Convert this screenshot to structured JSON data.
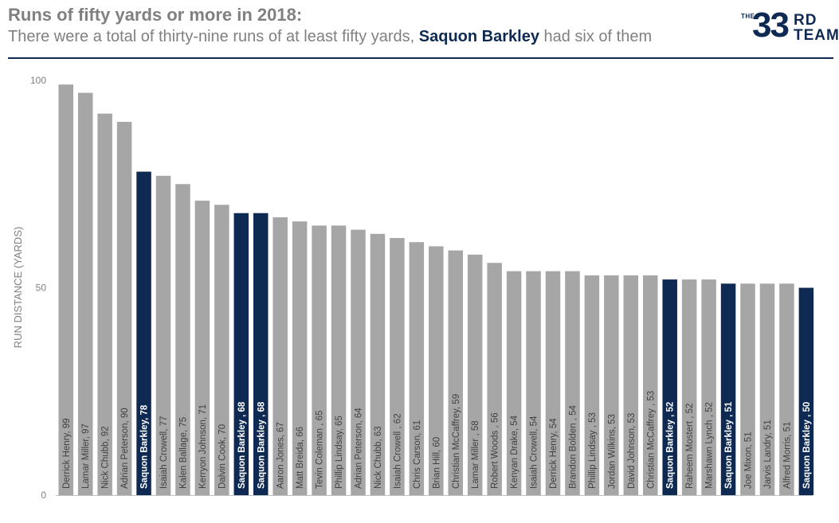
{
  "header": {
    "title": "Runs of fifty yards or more in 2018:",
    "subtitle_pre": "There were a total of thirty-nine runs of at least fifty yards, ",
    "subtitle_highlight": "Saquon Barkley",
    "subtitle_post": " had six of them"
  },
  "logo": {
    "the": "THE",
    "num": "33",
    "rd": "RD",
    "team": "TEAM"
  },
  "colors": {
    "bar": "#a6a6a6",
    "highlight": "#0f2a52",
    "accent": "#0f2a52",
    "text": "#808080"
  },
  "chart_data": {
    "type": "bar",
    "ylabel": "RUN DISTANCE (YARDS)",
    "ylim": [
      0,
      100
    ],
    "yticks": [
      0,
      50,
      100
    ],
    "categories": [
      "Derrick Henry, 99",
      "Lamar Miller, 97",
      "Nick Chubb, 92",
      "Adrian Peterson, 90",
      "Saquon Barkley, 78",
      "Isaiah Crowell, 77",
      "Kalen Ballage, 75",
      "Kerryon Johnson, 71",
      "Dalvin Cook, 70",
      "Saquon Barkley , 68",
      "Saquon Barkley , 68",
      "Aaron Jones, 67",
      "Matt Breida, 66",
      "Tevin Coleman , 65",
      "Phillip Lindsay, 65",
      "Adrian Peterson, 64",
      "Nick Chubb, 63",
      "Isaiah Crowell , 62",
      "Chris Carson, 61",
      "Brian Hill, 60",
      "Christian McCaffrey, 59",
      "Lamar Miller , 58",
      "Robert Woods , 56",
      "Kenyan Drake, 54",
      "Isaiah Crowell, 54",
      "Derrick Henry, 54",
      "Brandon Bolden , 54",
      "Phillip Lindsay , 53",
      "Jordan Wilkins, 53",
      "David Johnson, 53",
      "Christian McCaffrey , 53",
      "Saquon Barkley , 52",
      "Raheem Mostert , 52",
      "Marshawn Lynch , 52",
      "Saquon Barkley , 51",
      "Joe Mixon, 51",
      "Jarvis Landry, 51",
      "Alfred Morris, 51",
      "Saquon Barkley , 50"
    ],
    "values": [
      99,
      97,
      92,
      90,
      78,
      77,
      75,
      71,
      70,
      68,
      68,
      67,
      66,
      65,
      65,
      64,
      63,
      62,
      61,
      60,
      59,
      58,
      56,
      54,
      54,
      54,
      54,
      53,
      53,
      53,
      53,
      52,
      52,
      52,
      51,
      51,
      51,
      51,
      50
    ],
    "highlighted_indices": [
      4,
      9,
      10,
      31,
      34,
      38
    ]
  }
}
